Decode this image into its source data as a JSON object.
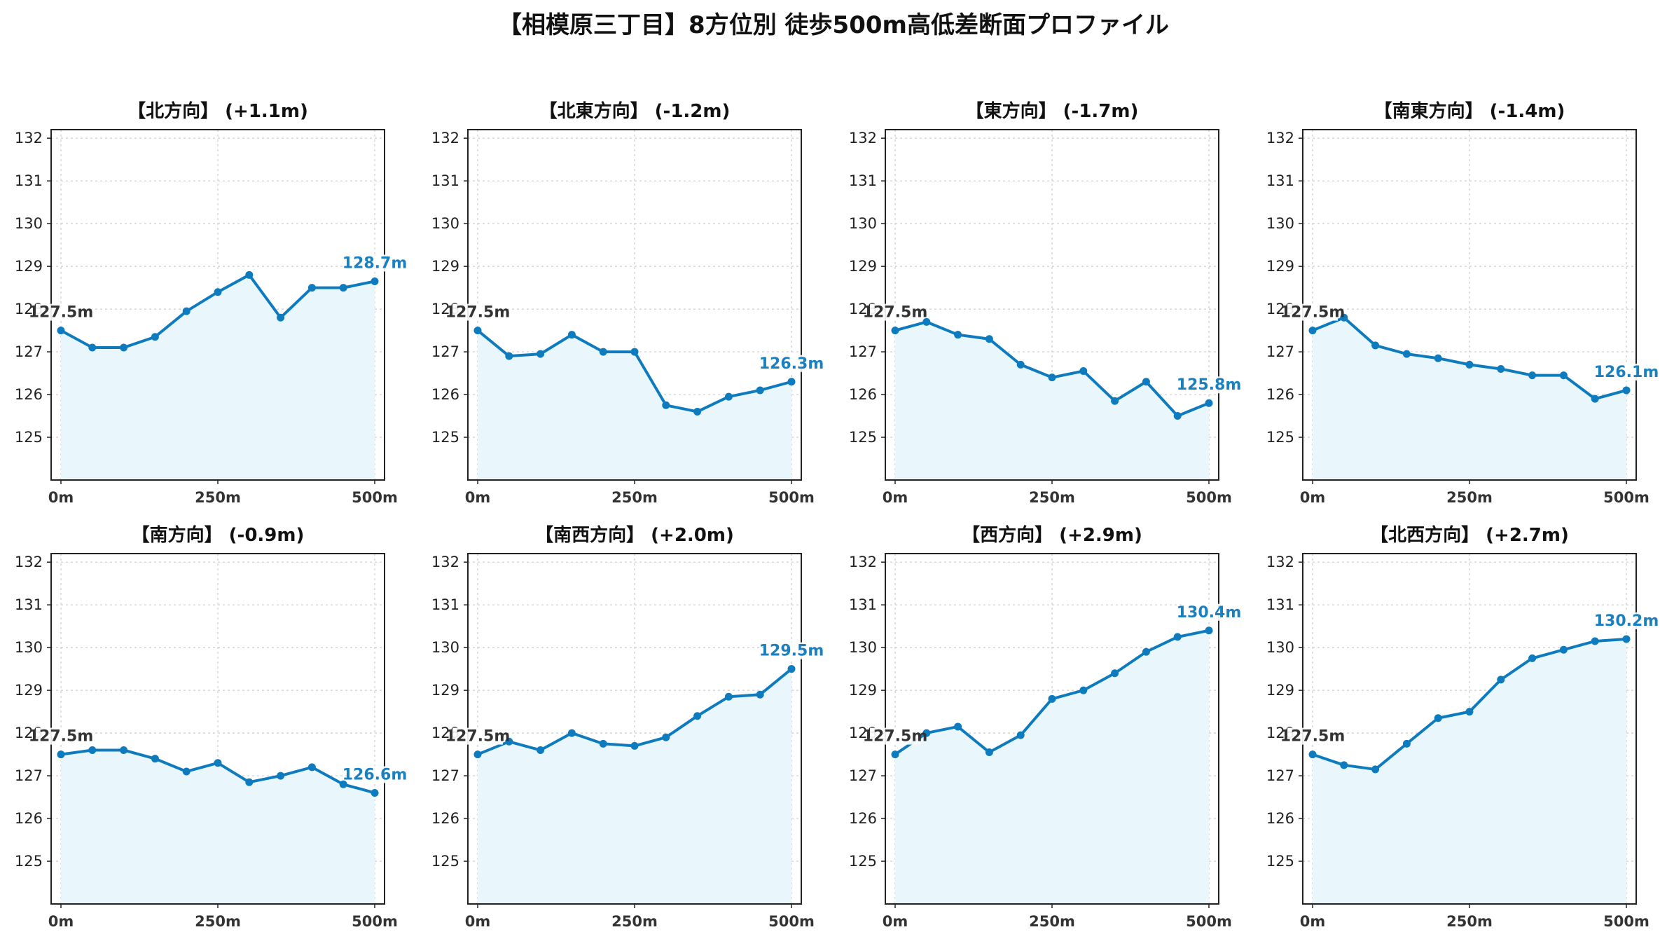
{
  "figure_title": "【相模原三丁目】8方位別 徒歩500m高低差断面プロファイル",
  "colors": {
    "line": "#0d7bbd",
    "fill": "#e9f6fc",
    "grid": "#cccccc",
    "start_label": "#333333",
    "end_label": "#1a80c0"
  },
  "chart_data": [
    {
      "type": "area",
      "title": "【北方向】 (+1.1m)",
      "x": [
        0,
        50,
        100,
        150,
        200,
        250,
        300,
        350,
        400,
        450,
        500
      ],
      "values": [
        127.5,
        127.1,
        127.1,
        127.35,
        127.95,
        128.4,
        128.8,
        127.8,
        128.5,
        128.5,
        128.65
      ],
      "xticks": [
        "0m",
        "250m",
        "500m"
      ],
      "ylim": [
        124,
        132.2
      ],
      "yticks": [
        125,
        126,
        127,
        128,
        129,
        130,
        131,
        132
      ],
      "start_label": "127.5m",
      "end_label": "128.7m",
      "grid": true
    },
    {
      "type": "area",
      "title": "【北東方向】 (-1.2m)",
      "x": [
        0,
        50,
        100,
        150,
        200,
        250,
        300,
        350,
        400,
        450,
        500
      ],
      "values": [
        127.5,
        126.9,
        126.95,
        127.4,
        127.0,
        127.0,
        125.75,
        125.6,
        125.95,
        126.1,
        126.3
      ],
      "xticks": [
        "0m",
        "250m",
        "500m"
      ],
      "ylim": [
        124,
        132.2
      ],
      "yticks": [
        125,
        126,
        127,
        128,
        129,
        130,
        131,
        132
      ],
      "start_label": "127.5m",
      "end_label": "126.3m",
      "grid": true
    },
    {
      "type": "area",
      "title": "【東方向】 (-1.7m)",
      "x": [
        0,
        50,
        100,
        150,
        200,
        250,
        300,
        350,
        400,
        450,
        500
      ],
      "values": [
        127.5,
        127.7,
        127.4,
        127.3,
        126.7,
        126.4,
        126.55,
        125.85,
        126.3,
        125.5,
        125.8
      ],
      "xticks": [
        "0m",
        "250m",
        "500m"
      ],
      "ylim": [
        124,
        132.2
      ],
      "yticks": [
        125,
        126,
        127,
        128,
        129,
        130,
        131,
        132
      ],
      "start_label": "127.5m",
      "end_label": "125.8m",
      "grid": true
    },
    {
      "type": "area",
      "title": "【南東方向】 (-1.4m)",
      "x": [
        0,
        50,
        100,
        150,
        200,
        250,
        300,
        350,
        400,
        450,
        500
      ],
      "values": [
        127.5,
        127.8,
        127.15,
        126.95,
        126.85,
        126.7,
        126.6,
        126.45,
        126.45,
        125.9,
        126.1
      ],
      "xticks": [
        "0m",
        "250m",
        "500m"
      ],
      "ylim": [
        124,
        132.2
      ],
      "yticks": [
        125,
        126,
        127,
        128,
        129,
        130,
        131,
        132
      ],
      "start_label": "127.5m",
      "end_label": "126.1m",
      "grid": true
    },
    {
      "type": "area",
      "title": "【南方向】 (-0.9m)",
      "x": [
        0,
        50,
        100,
        150,
        200,
        250,
        300,
        350,
        400,
        450,
        500
      ],
      "values": [
        127.5,
        127.6,
        127.6,
        127.4,
        127.1,
        127.3,
        126.85,
        127.0,
        127.2,
        126.8,
        126.6
      ],
      "xticks": [
        "0m",
        "250m",
        "500m"
      ],
      "ylim": [
        124,
        132.2
      ],
      "yticks": [
        125,
        126,
        127,
        128,
        129,
        130,
        131,
        132
      ],
      "start_label": "127.5m",
      "end_label": "126.6m",
      "grid": true
    },
    {
      "type": "area",
      "title": "【南西方向】 (+2.0m)",
      "x": [
        0,
        50,
        100,
        150,
        200,
        250,
        300,
        350,
        400,
        450,
        500
      ],
      "values": [
        127.5,
        127.8,
        127.6,
        128.0,
        127.75,
        127.7,
        127.9,
        128.4,
        128.85,
        128.9,
        129.5
      ],
      "xticks": [
        "0m",
        "250m",
        "500m"
      ],
      "ylim": [
        124,
        132.2
      ],
      "yticks": [
        125,
        126,
        127,
        128,
        129,
        130,
        131,
        132
      ],
      "start_label": "127.5m",
      "end_label": "129.5m",
      "grid": true
    },
    {
      "type": "area",
      "title": "【西方向】 (+2.9m)",
      "x": [
        0,
        50,
        100,
        150,
        200,
        250,
        300,
        350,
        400,
        450,
        500
      ],
      "values": [
        127.5,
        128.0,
        128.15,
        127.55,
        127.95,
        128.8,
        129.0,
        129.4,
        129.9,
        130.25,
        130.4
      ],
      "xticks": [
        "0m",
        "250m",
        "500m"
      ],
      "ylim": [
        124,
        132.2
      ],
      "yticks": [
        125,
        126,
        127,
        128,
        129,
        130,
        131,
        132
      ],
      "start_label": "127.5m",
      "end_label": "130.4m",
      "grid": true
    },
    {
      "type": "area",
      "title": "【北西方向】 (+2.7m)",
      "x": [
        0,
        50,
        100,
        150,
        200,
        250,
        300,
        350,
        400,
        450,
        500
      ],
      "values": [
        127.5,
        127.25,
        127.15,
        127.75,
        128.35,
        128.5,
        129.25,
        129.75,
        129.95,
        130.15,
        130.2
      ],
      "xticks": [
        "0m",
        "250m",
        "500m"
      ],
      "ylim": [
        124,
        132.2
      ],
      "yticks": [
        125,
        126,
        127,
        128,
        129,
        130,
        131,
        132
      ],
      "start_label": "127.5m",
      "end_label": "130.2m",
      "grid": true
    }
  ]
}
